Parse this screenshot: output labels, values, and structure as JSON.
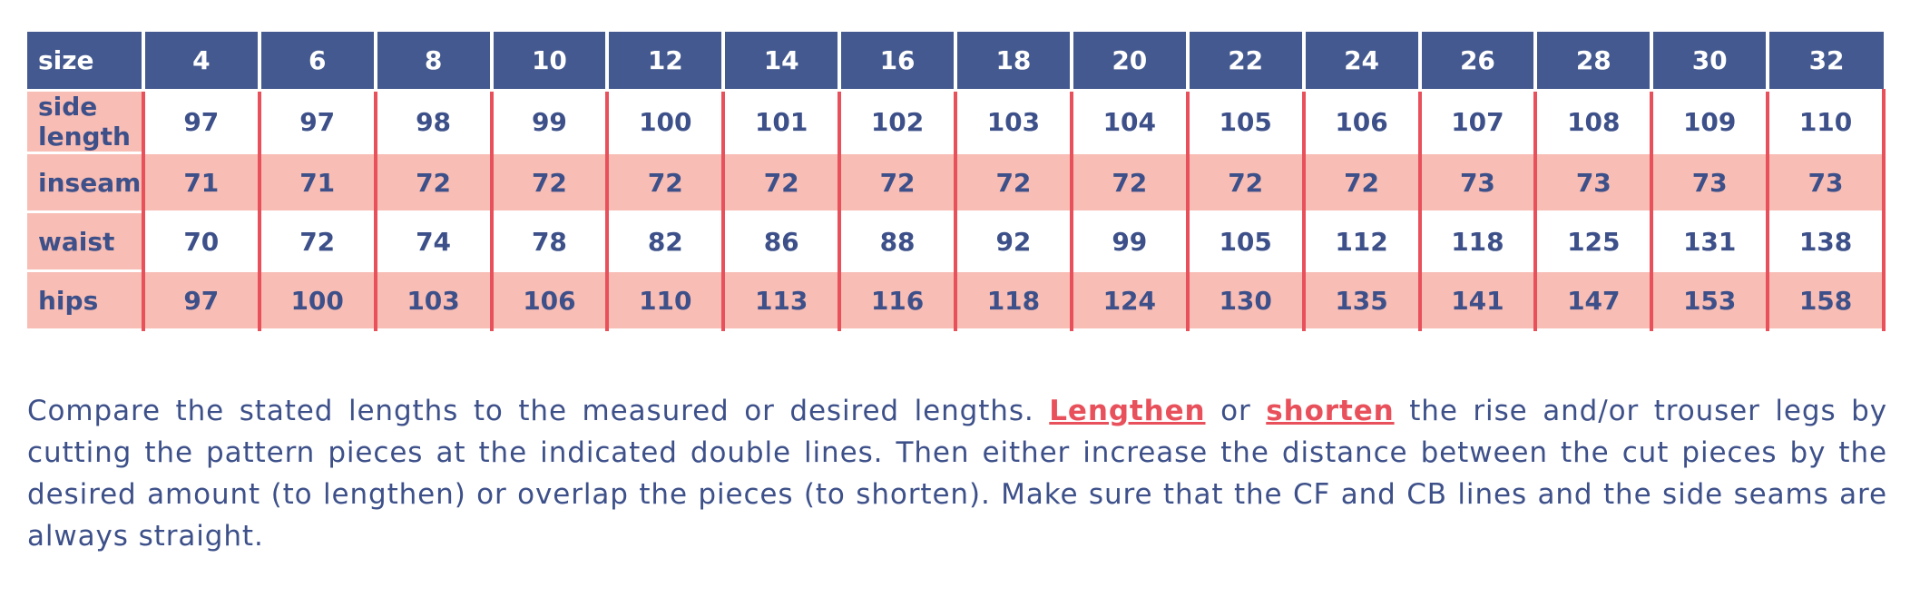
{
  "table": {
    "header": [
      "size",
      "4",
      "6",
      "8",
      "10",
      "12",
      "14",
      "16",
      "18",
      "20",
      "22",
      "24",
      "26",
      "28",
      "30",
      "32"
    ],
    "rows": [
      [
        "side length",
        97,
        97,
        98,
        99,
        100,
        101,
        102,
        103,
        104,
        105,
        106,
        107,
        108,
        109,
        110
      ],
      [
        "inseam",
        71,
        71,
        72,
        72,
        72,
        72,
        72,
        72,
        72,
        72,
        72,
        73,
        73,
        73,
        73
      ],
      [
        "waist",
        70,
        72,
        74,
        78,
        82,
        86,
        88,
        92,
        99,
        105,
        112,
        118,
        125,
        131,
        138
      ],
      [
        "hips",
        97,
        100,
        103,
        106,
        110,
        113,
        116,
        118,
        124,
        130,
        135,
        141,
        147,
        153,
        158
      ]
    ]
  },
  "paragraph": {
    "text1": "Compare the stated lengths to the measured or desired lengths.",
    "link1": "Lengthen",
    "text2": "or",
    "link2": "shorten",
    "text3": "the rise and/or trouser legs by cutting the pattern pieces at the indicated double lines. Then either increase the distance between the cut pieces by the desired amount (to lengthen) or overlap the pieces (to shorten). Make sure that the CF and CB lines and the side seams are always straight."
  }
}
